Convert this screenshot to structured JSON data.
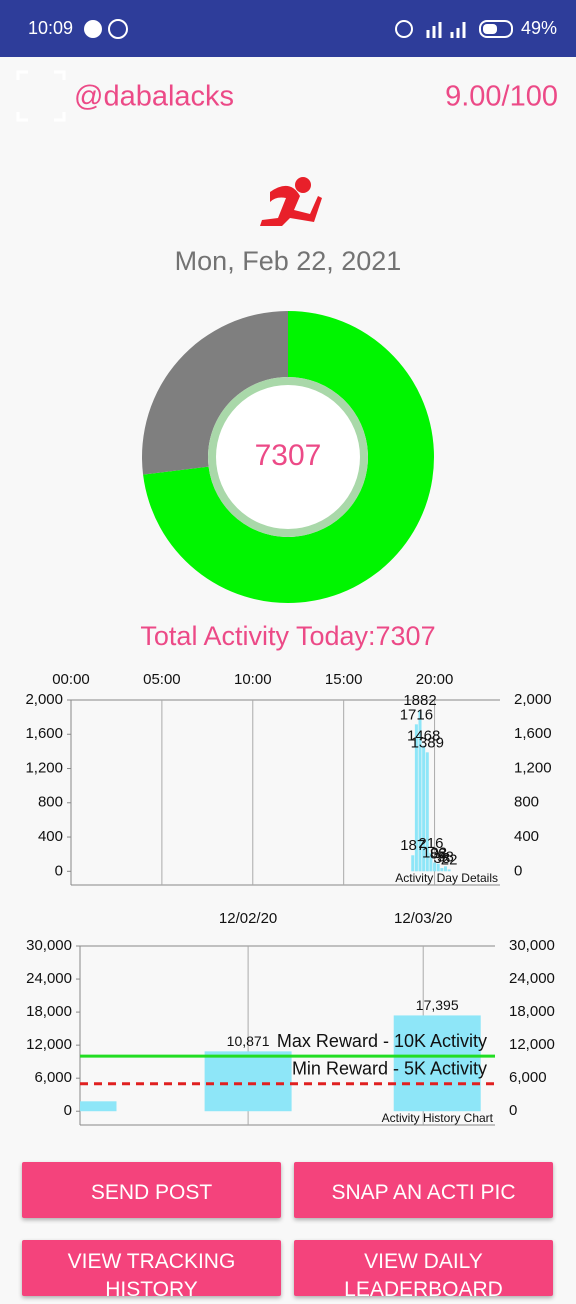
{
  "status_bar": {
    "time": "10:09",
    "battery": "49%"
  },
  "header": {
    "username": "@dabalacks",
    "score": "9.00/100"
  },
  "date": "Mon, Feb 22, 2021",
  "total_activity": "Total Activity Today:7307",
  "chart_data": [
    {
      "type": "donut",
      "values": [
        7307,
        2693
      ],
      "colors": [
        "#00f500",
        "#7f7f7f"
      ]
    },
    {
      "type": "bar",
      "annotation": "Activity Day Details",
      "x": [
        18.8,
        19.0,
        19.2,
        19.4,
        19.6,
        19.8,
        20.0,
        20.2,
        20.4,
        20.6,
        20.8
      ],
      "values": [
        187,
        1716,
        1882,
        1468,
        1389,
        216,
        102,
        88,
        38,
        58,
        22
      ],
      "color": "#8ee6f8",
      "xlim": [
        0,
        23.6
      ],
      "xticks": [
        {
          "value": 0,
          "label": "00:00"
        },
        {
          "value": 5,
          "label": "05:00"
        },
        {
          "value": 10,
          "label": "10:00"
        },
        {
          "value": 15,
          "label": "15:00"
        },
        {
          "value": 20,
          "label": "20:00"
        }
      ],
      "ylim": [
        -160,
        2000
      ],
      "yticks": [
        0,
        400,
        800,
        {
          "value": 1200,
          "label": "1,200"
        },
        {
          "value": 1600,
          "label": "1,600"
        },
        {
          "value": 2000,
          "label": "2,000"
        }
      ]
    },
    {
      "type": "bar",
      "annotation": "Activity History Chart",
      "x": [
        0,
        1,
        2.08
      ],
      "values": [
        1800,
        10871,
        17395
      ],
      "value_labels": [
        null,
        "10,871",
        "17,395"
      ],
      "color": "#8ee6f8",
      "xlim": [
        0.04,
        2.41
      ],
      "xticks": [
        {
          "value": 1,
          "label": "12/02/20"
        },
        {
          "value": 2,
          "label": "12/03/20"
        }
      ],
      "ylim": [
        -2500,
        30000
      ],
      "yticks": [
        0,
        {
          "value": 6000,
          "label": "6,000"
        },
        {
          "value": 12000,
          "label": "12,000"
        },
        {
          "value": 18000,
          "label": "18,000"
        },
        {
          "value": 24000,
          "label": "24,000"
        },
        {
          "value": 30000,
          "label": "30,000"
        }
      ],
      "reference_lines": [
        {
          "label": "Max Reward - 10K Activity",
          "value": 10000,
          "color": "#22dd22",
          "dashed": false
        },
        {
          "label": "Min Reward - 5K Activity",
          "value": 5000,
          "color": "#e02020",
          "dashed": true
        }
      ]
    }
  ],
  "buttons": [
    "SEND POST",
    "SNAP AN ACTI PIC",
    "VIEW TRACKING HISTORY",
    "VIEW DAILY LEADERBOARD"
  ]
}
